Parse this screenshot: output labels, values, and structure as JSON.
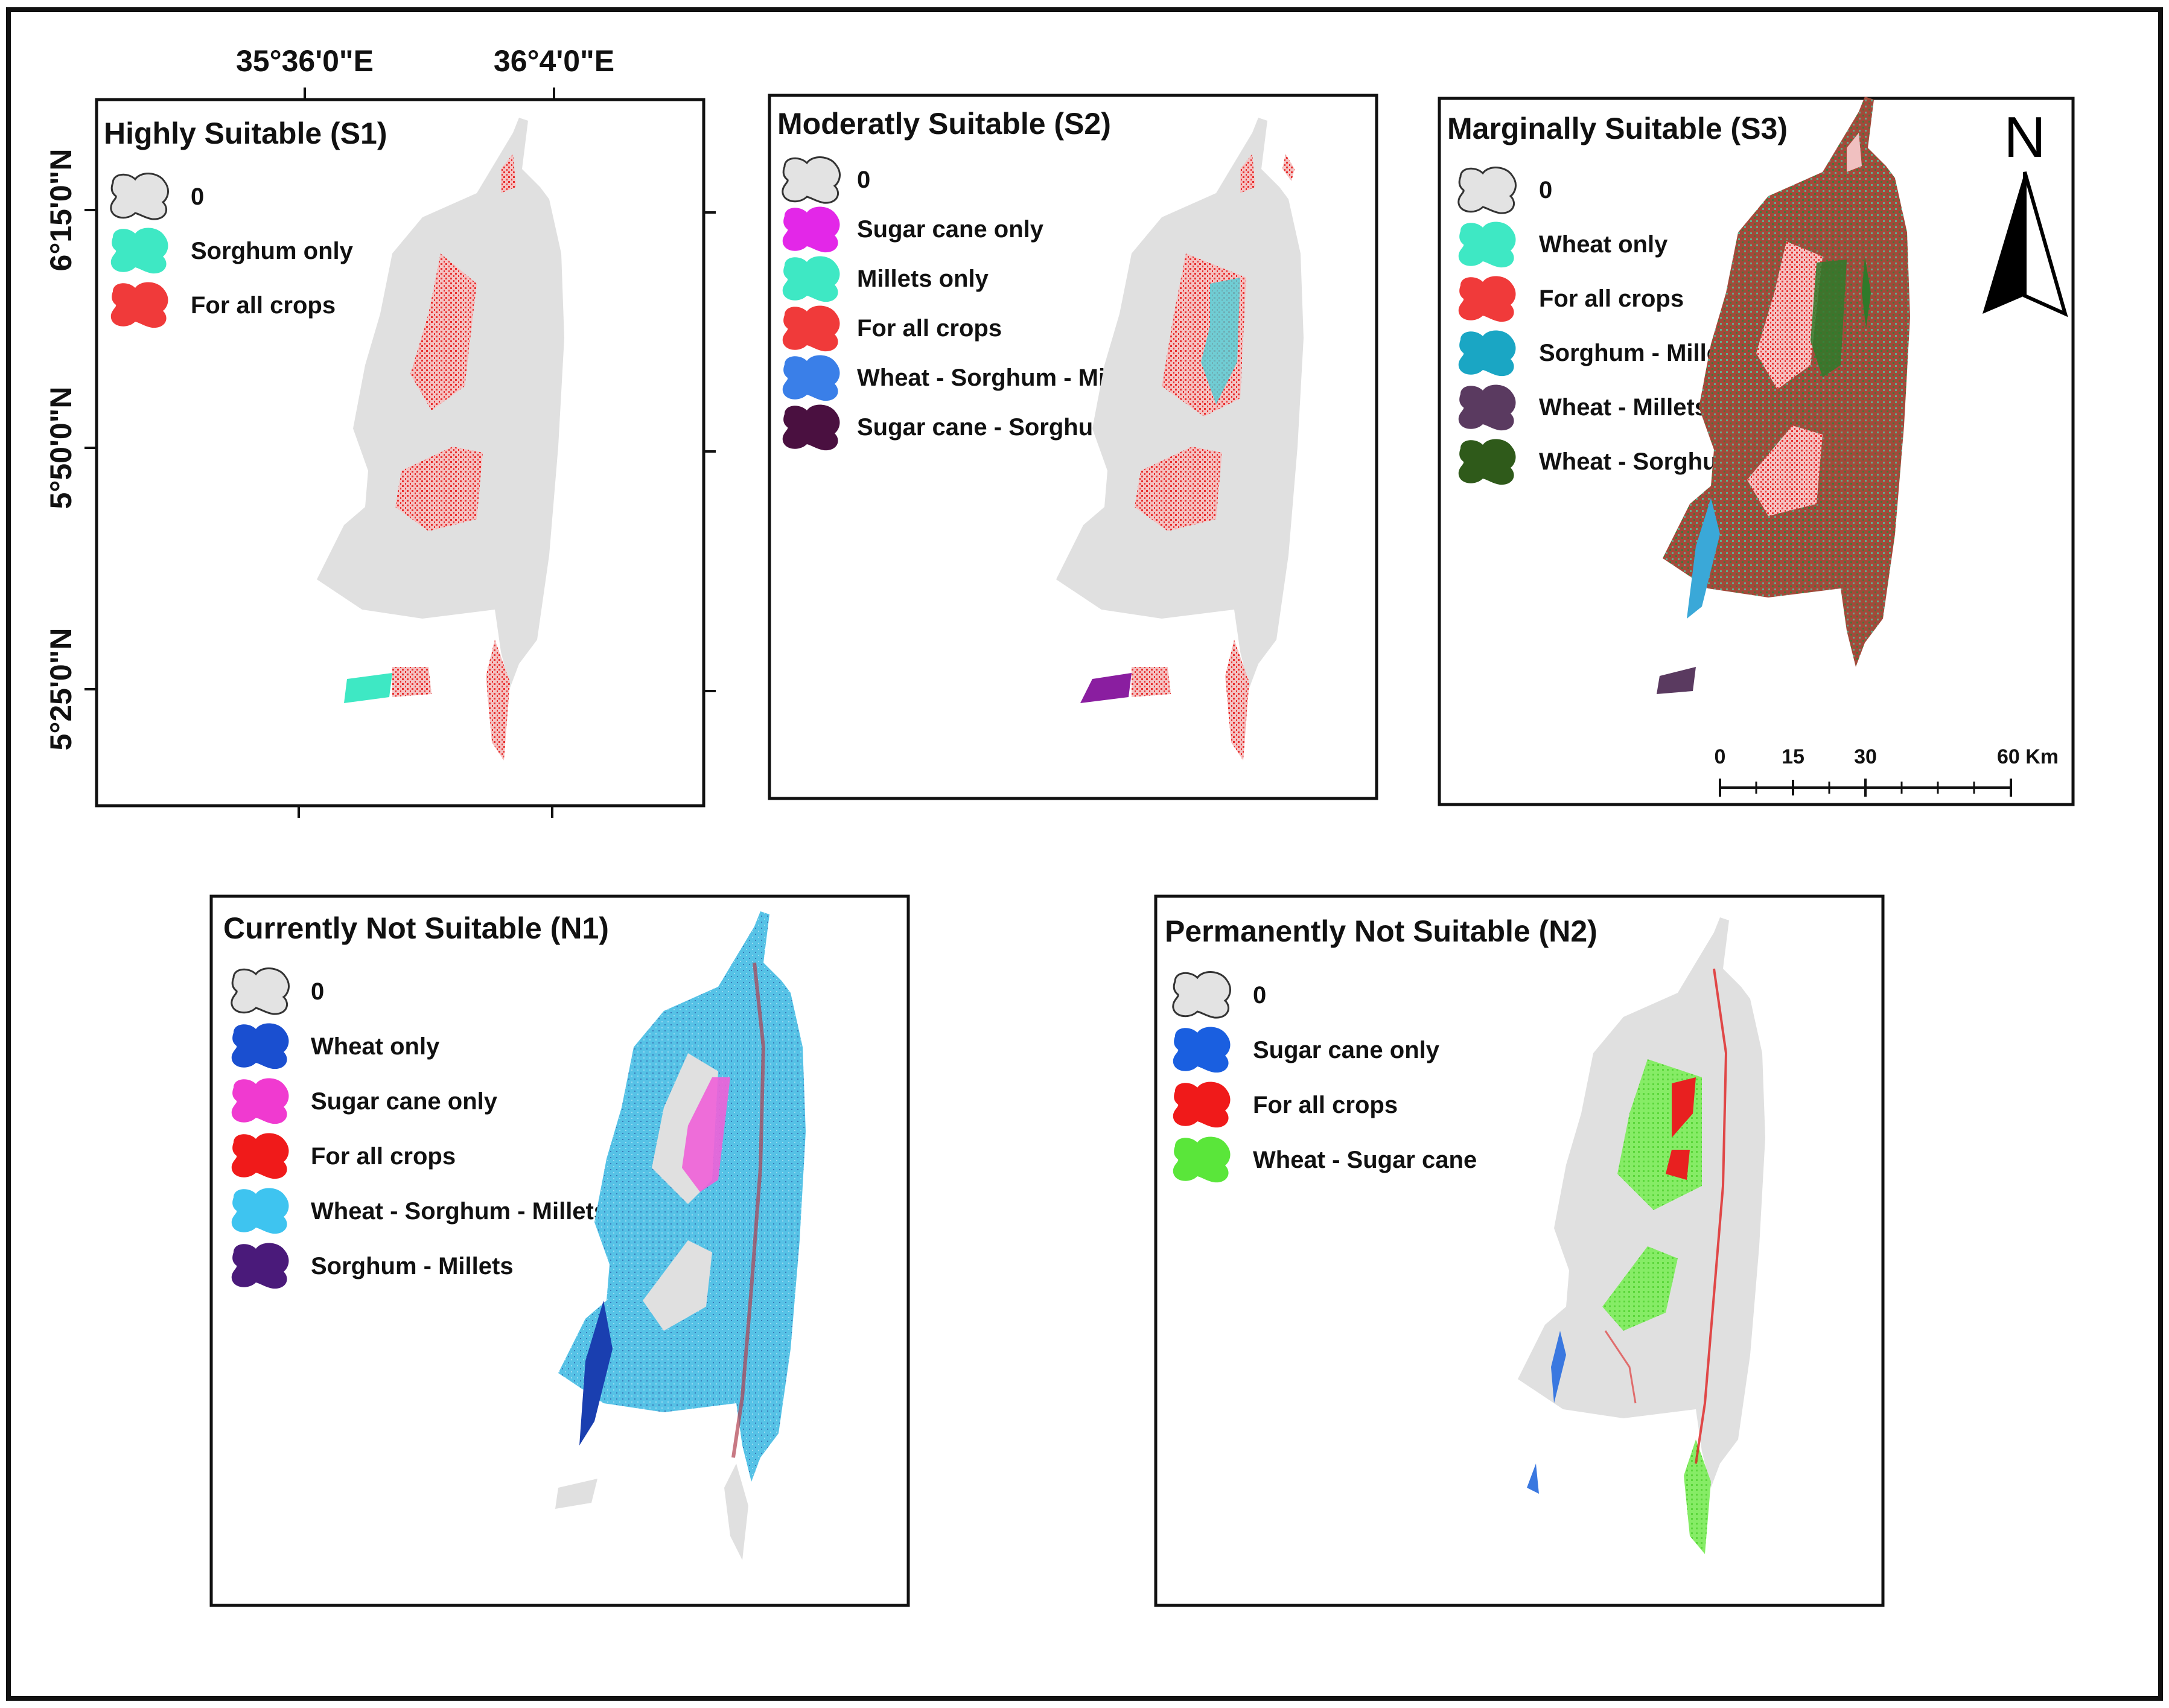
{
  "colors": {
    "background_region": "#e0e0e0",
    "frame": "#111111"
  },
  "axes": {
    "lon_labels": [
      "35°36'0\"E",
      "36°4'0\"E"
    ],
    "lat_labels": [
      "6°15'0\"N",
      "5°50'0\"N",
      "5°25'0\"N"
    ]
  },
  "north_arrow": {
    "label": "N",
    "icon": "north-arrow-icon"
  },
  "scale_bar": {
    "labels": [
      "0",
      "15",
      "30",
      "60 Km"
    ]
  },
  "panels": [
    {
      "id": "s1",
      "title": "Highly Suitable (S1)",
      "legend": [
        {
          "label": "0",
          "color": "#e3e3e3"
        },
        {
          "label": "Sorghum only",
          "color": "#3ee8c4"
        },
        {
          "label": "For all crops",
          "color": "#f03a3a"
        }
      ]
    },
    {
      "id": "s2",
      "title": "Moderatly Suitable (S2)",
      "legend": [
        {
          "label": "0",
          "color": "#e3e3e3"
        },
        {
          "label": "Sugar cane only",
          "color": "#e327e8"
        },
        {
          "label": "Millets only",
          "color": "#3ee8c4"
        },
        {
          "label": "For all crops",
          "color": "#f03a3a"
        },
        {
          "label": "Wheat - Sorghum  - Millets",
          "color": "#3a7fe8"
        },
        {
          "label": "Sugar cane - Sorghum",
          "color": "#4a1040"
        }
      ]
    },
    {
      "id": "s3",
      "title": "Marginally Suitable (S3)",
      "legend": [
        {
          "label": "0",
          "color": "#e3e3e3"
        },
        {
          "label": "Wheat only",
          "color": "#3ee8c4"
        },
        {
          "label": "For all crops",
          "color": "#f03a3a"
        },
        {
          "label": "Sorghum - Millets",
          "color": "#1aa6c4"
        },
        {
          "label": "Wheat  - Millets",
          "color": "#5a3a60"
        },
        {
          "label": "Wheat - Sorghum",
          "color": "#2f5a1a"
        }
      ]
    },
    {
      "id": "n1",
      "title": "Currently Not Suitable (N1)",
      "legend": [
        {
          "label": "0",
          "color": "#e3e3e3"
        },
        {
          "label": "Wheat only",
          "color": "#1a4fd0"
        },
        {
          "label": "Sugar cane only",
          "color": "#f03ad0"
        },
        {
          "label": "For all crops",
          "color": "#f01a1a"
        },
        {
          "label": "Wheat - Sorghum  - Millets",
          "color": "#3ec4f0"
        },
        {
          "label": "Sorghum - Millets",
          "color": "#4a1a7a"
        }
      ]
    },
    {
      "id": "n2",
      "title": "Permanently Not Suitable (N2)",
      "legend": [
        {
          "label": "0",
          "color": "#e3e3e3"
        },
        {
          "label": "Sugar cane only",
          "color": "#1a5fe0"
        },
        {
          "label": "For all crops",
          "color": "#f01a1a"
        },
        {
          "label": "Wheat - Sugar cane",
          "color": "#5ae63a"
        }
      ]
    }
  ]
}
